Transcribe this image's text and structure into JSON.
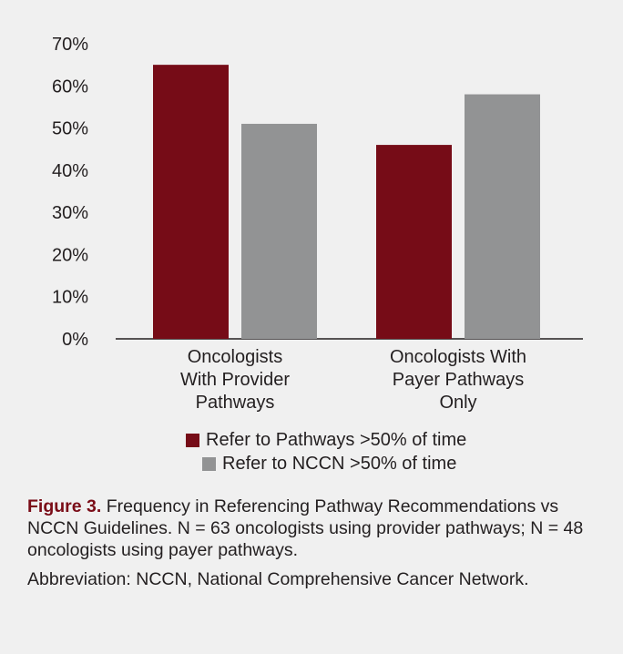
{
  "chart_data": {
    "type": "bar",
    "categories": [
      [
        "Oncologists",
        "With Provider",
        "Pathways"
      ],
      [
        "Oncologists With",
        "Payer Pathways",
        "Only"
      ]
    ],
    "series": [
      {
        "name": "Refer to Pathways >50% of time",
        "color": "#760c17",
        "values": [
          65,
          46
        ]
      },
      {
        "name": "Refer to NCCN >50% of time",
        "color": "#929394",
        "values": [
          51,
          58
        ]
      }
    ],
    "ylim": [
      0,
      70
    ],
    "yticks": [
      "0%",
      "10%",
      "20%",
      "30%",
      "40%",
      "50%",
      "60%",
      "70%"
    ],
    "grid": false,
    "legend_position": "bottom"
  },
  "caption": {
    "figure_label": "Figure 3.",
    "text": " Frequency in Referencing Pathway Recommendations vs NCCN Guidelines. N = 63 oncologists using provider pathways; N = 48 oncologists using payer pathways.",
    "abbreviation": "Abbreviation: NCCN, National Comprehensive Cancer Network."
  }
}
